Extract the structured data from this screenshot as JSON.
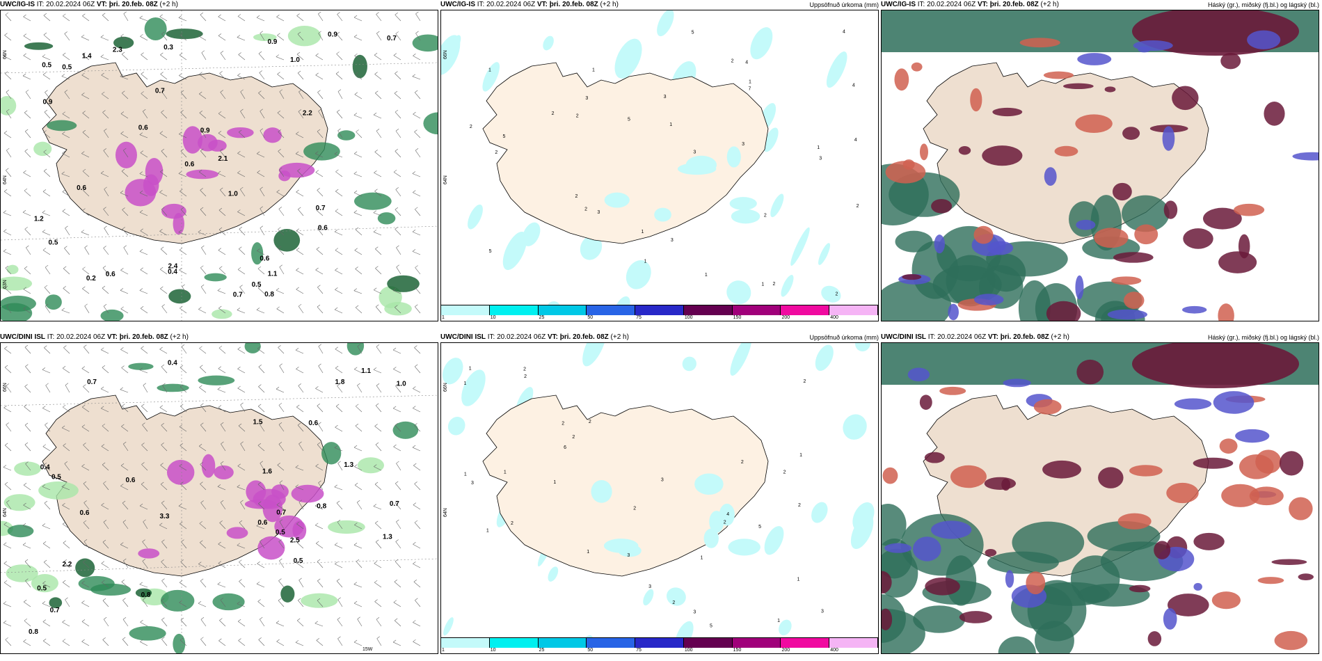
{
  "rows": [
    {
      "model": "UWC/IG-IS",
      "panels": [
        {
          "id": "r1p1",
          "type": "wind-precip",
          "model": "UWC/IG-IS",
          "it_label": "IT:",
          "it_value": "20.02.2024 06Z",
          "vt_label": "VT:",
          "vt_value": "þri. 20.feb. 08Z",
          "lead": "(+2 h)",
          "right_title": "",
          "axis_labels": [
            "66N",
            "64N",
            "63N"
          ],
          "value_labels": [
            "0.6",
            "0.9",
            "1.0",
            "0.5",
            "0.8",
            "0.6",
            "0.9",
            "2.4",
            "2.1",
            "2.2",
            "2.3",
            "0.5",
            "0.7",
            "0.7",
            "0.2",
            "0.6",
            "0.6",
            "1.4",
            "0.7",
            "0.9",
            "0.3",
            "1.0",
            "0.4",
            "0.5",
            "0.9",
            "0.6",
            "0.7",
            "1.2",
            "0.6",
            "0.5",
            "1.1"
          ]
        },
        {
          "id": "r1p2",
          "type": "accum-precip",
          "model": "UWC/IG-IS",
          "it_label": "IT:",
          "it_value": "20.02.2024 06Z",
          "vt_label": "VT:",
          "vt_value": "þri. 20.feb. 08Z",
          "lead": "(+2 h)",
          "right_title": "Uppsöfnuð úrkoma (mm)",
          "axis_labels": [
            "66N",
            "64N"
          ],
          "value_labels": [
            "3",
            "2",
            "2",
            "5",
            "2",
            "1",
            "1",
            "3",
            "2",
            "1",
            "4",
            "5",
            "4",
            "3",
            "2",
            "2",
            "5",
            "3",
            "1",
            "3",
            "2",
            "2",
            "2",
            "1",
            "4",
            "1",
            "7",
            "3",
            "4",
            "5",
            "1",
            "2",
            "1",
            "3",
            "2",
            "1"
          ]
        },
        {
          "id": "r1p3",
          "type": "cloud",
          "model": "UWC/IG-IS",
          "it_label": "IT:",
          "it_value": "20.02.2024 06Z",
          "vt_label": "VT:",
          "vt_value": "þri. 20.feb. 08Z",
          "lead": "(+2 h)",
          "right_title": "Háský (gr.), miðský (fj.bl.) og lágský (bl.)",
          "axis_labels": [],
          "value_labels": []
        }
      ]
    },
    {
      "model": "UWC/DINI ISL",
      "panels": [
        {
          "id": "r2p1",
          "type": "wind-precip",
          "model": "UWC/DINI ISL",
          "it_label": "IT:",
          "it_value": "20.02.2024 06Z",
          "vt_label": "VT:",
          "vt_value": "þri. 20.feb. 08Z",
          "lead": "(+2 h)",
          "right_title": "",
          "axis_labels": [
            "66N",
            "64N",
            "15W"
          ],
          "value_labels": [
            "0.5",
            "0.6",
            "0.7",
            "0.4",
            "0.8",
            "0.6",
            "1.6",
            "2.2",
            "1.8",
            "0.6",
            "1.1",
            "0.7",
            "0.5",
            "1.5",
            "1.3",
            "0.7",
            "0.5",
            "0.8",
            "2.5",
            "3.3",
            "1.3",
            "0.7",
            "0.4",
            "1.0",
            "0.6",
            "0.5",
            "0.8"
          ]
        },
        {
          "id": "r2p2",
          "type": "accum-precip",
          "model": "UWC/DINI ISL",
          "it_label": "IT:",
          "it_value": "20.02.2024 06Z",
          "vt_label": "VT:",
          "vt_value": "þri. 20.feb. 08Z",
          "lead": "(+2 h)",
          "right_title": "Uppsöfnuð úrkoma (mm)",
          "axis_labels": [
            "66N",
            "64N"
          ],
          "value_labels": [
            "5",
            "2",
            "2",
            "1",
            "1",
            "1",
            "1",
            "1",
            "1",
            "2",
            "3",
            "2",
            "2",
            "3",
            "1",
            "6",
            "2",
            "3",
            "2",
            "4",
            "3",
            "2",
            "2",
            "3",
            "1",
            "2",
            "1",
            "2",
            "5",
            "2",
            "1",
            "3",
            "1",
            "2"
          ]
        },
        {
          "id": "r2p3",
          "type": "cloud",
          "model": "UWC/DINI ISL",
          "it_label": "IT:",
          "it_value": "20.02.2024 06Z",
          "vt_label": "VT:",
          "vt_value": "þri. 20.feb. 08Z",
          "lead": "(+2 h)",
          "right_title": "Háský (gr.), miðský (fj.bl.) og lágský (bl.)",
          "axis_labels": [],
          "value_labels": []
        }
      ]
    }
  ],
  "legend": {
    "colors": [
      "#c4fafa",
      "#00f0f0",
      "#00c8e6",
      "#2864e6",
      "#2828c8",
      "#640050",
      "#a0007a",
      "#f00aa0",
      "#f5b4f5"
    ],
    "labels": [
      "1",
      "10",
      "25",
      "50",
      "75",
      "100",
      "150",
      "200",
      "400"
    ]
  },
  "colors": {
    "land": "#eedfd0",
    "land_light": "#fdf1e3",
    "green": "#2e8b57",
    "green_dark": "#0f5a2a",
    "green_light": "#a8e6a8",
    "magenta": "#c850c8",
    "cyan_light": "#c4fafa",
    "cloud_high": "#2e6e5a",
    "cloud_mid": "#6a1a3a",
    "cloud_low": "#5555cc",
    "cloud_orange": "#d06050"
  }
}
